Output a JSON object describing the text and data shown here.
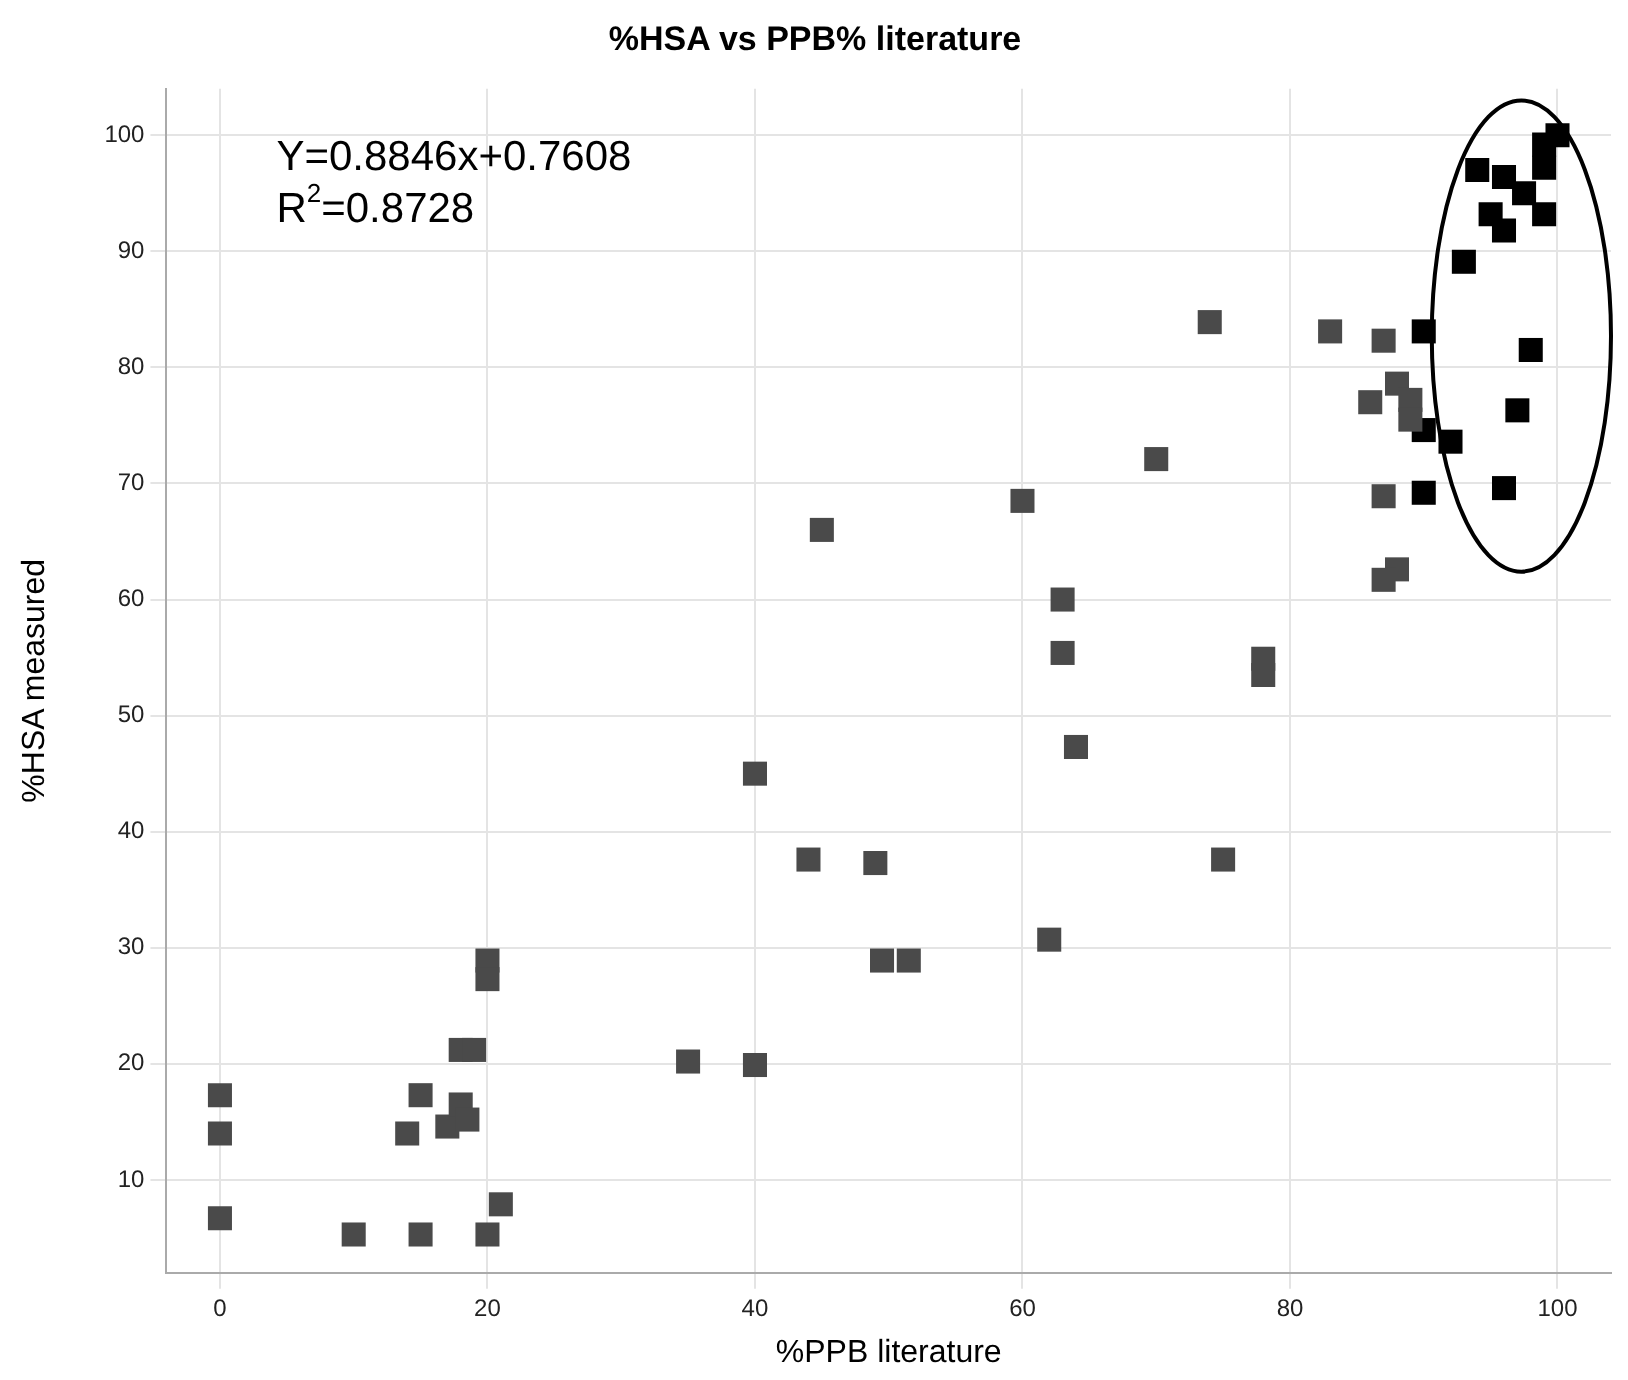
{
  "chart_data": {
    "type": "scatter",
    "title": "%HSA vs PPB% literature",
    "xlabel": "%PPB literature",
    "ylabel": "%HSA measured",
    "annotations": [
      "Y=0.8846x+0.7608",
      "R$^{2}$=0.8728"
    ],
    "xlim": [
      -4,
      104
    ],
    "ylim": [
      2,
      104
    ],
    "xticks": [
      0,
      20,
      40,
      60,
      80,
      100
    ],
    "yticks": [
      10,
      20,
      30,
      40,
      50,
      60,
      70,
      80,
      90,
      100
    ],
    "grid": true,
    "legend": false,
    "marker": "square",
    "series": [
      {
        "color": "#4a4a4a",
        "x": [
          0,
          0,
          0,
          10,
          15,
          20,
          21,
          15,
          14,
          17,
          18,
          18.5,
          18,
          19,
          20,
          20,
          35,
          40,
          45,
          60,
          63,
          63,
          64,
          40,
          44,
          49,
          62,
          49.5,
          51.5,
          70,
          75,
          78,
          78,
          74,
          83,
          87,
          88,
          86,
          89,
          89,
          87,
          88,
          87
        ],
        "values": [
          17.3,
          14,
          6.7,
          5.3,
          5.3,
          5.3,
          7.9,
          17.3,
          14,
          14.6,
          16.5,
          15.2,
          21.2,
          21.2,
          28.9,
          27.3,
          20.2,
          19.9,
          66,
          68.5,
          60,
          55.4,
          47.3,
          45,
          37.6,
          37.3,
          30.7,
          28.9,
          28.9,
          72.1,
          37.6,
          54.9,
          53.5,
          83.9,
          83.1,
          82.3,
          78.6,
          77,
          77.2,
          75.5,
          68.9,
          62.6,
          61.7
        ]
      },
      {
        "color": "#000000",
        "x": [
          90,
          98,
          90,
          92,
          97,
          96,
          90,
          93,
          94,
          96,
          95,
          96,
          99,
          97.5,
          99,
          99,
          100
        ],
        "values": [
          83.1,
          81.5,
          74.6,
          73.6,
          76.3,
          69.6,
          69.2,
          89.1,
          97,
          96.4,
          93.2,
          91.8,
          93.2,
          95,
          97.2,
          99.2,
          100
        ]
      }
    ]
  }
}
